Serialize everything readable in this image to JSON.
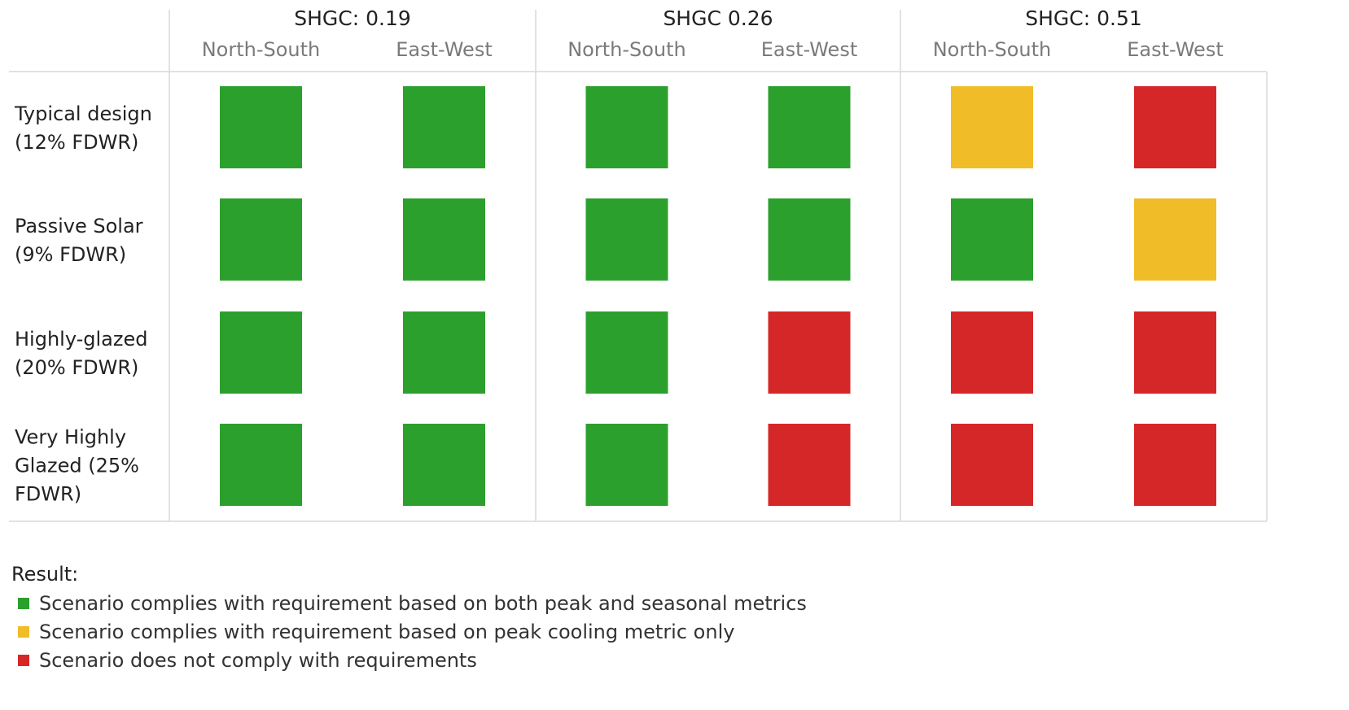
{
  "chart_data": {
    "type": "heatmap",
    "groups": [
      {
        "title": "SHGC: 0.19",
        "subgroups": [
          "North-South",
          "East-West"
        ]
      },
      {
        "title": "SHGC 0.26",
        "subgroups": [
          "North-South",
          "East-West"
        ]
      },
      {
        "title": "SHGC: 0.51",
        "subgroups": [
          "North-South",
          "East-West"
        ]
      }
    ],
    "rows": [
      [
        "Typical design",
        "(12% FDWR)"
      ],
      [
        "Passive Solar",
        "(9% FDWR)"
      ],
      [
        "Highly-glazed",
        "(20% FDWR)"
      ],
      [
        "Very Highly",
        "Glazed (25%",
        "FDWR)"
      ]
    ],
    "results": [
      [
        "both",
        "both",
        "both",
        "both",
        "peak",
        "none"
      ],
      [
        "both",
        "both",
        "both",
        "both",
        "both",
        "peak"
      ],
      [
        "both",
        "both",
        "both",
        "none",
        "none",
        "none"
      ],
      [
        "both",
        "both",
        "both",
        "none",
        "none",
        "none"
      ]
    ],
    "colors": {
      "both": "#2ca02c",
      "peak": "#f0bc27",
      "none": "#d62728"
    }
  },
  "legend": {
    "title": "Result:",
    "items": [
      {
        "key": "both",
        "label": "Scenario complies with requirement based on both peak and seasonal metrics"
      },
      {
        "key": "peak",
        "label": "Scenario complies with requirement based on peak cooling metric only"
      },
      {
        "key": "none",
        "label": "Scenario does not comply with requirements"
      }
    ]
  }
}
